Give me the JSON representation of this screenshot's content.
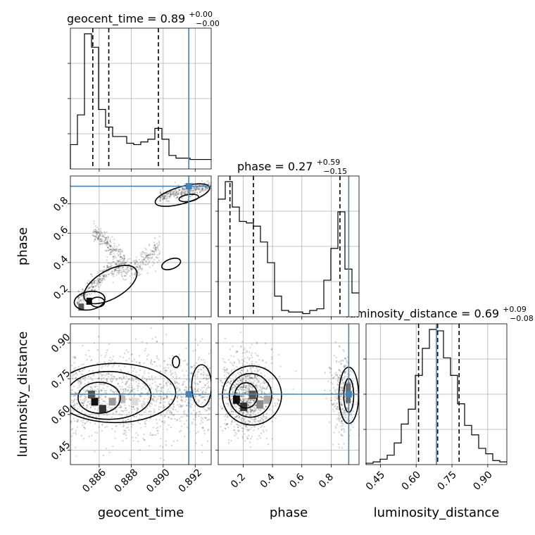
{
  "chart_data": {
    "type": "corner",
    "parameters": [
      "geocent_time",
      "phase",
      "luminosity_distance"
    ],
    "panel_titles": {
      "geocent_time": {
        "name": "geocent_time",
        "median": "0.89",
        "plus": "+0.00",
        "minus": "−0.00"
      },
      "phase": {
        "name": "phase",
        "median": "0.27",
        "plus": "+0.59",
        "minus": "−0.15"
      },
      "luminosity_distance": {
        "name": "luminosity_distance",
        "median": "0.69",
        "plus": "+0.09",
        "minus": "−0.08"
      }
    },
    "ranges": {
      "geocent_time": [
        0.8842,
        0.893
      ],
      "phase": [
        0.03,
        0.99
      ],
      "luminosity_distance": [
        0.39,
        0.98
      ]
    },
    "ticks": {
      "geocent_time": [
        {
          "v": 0.886,
          "label": "0.886"
        },
        {
          "v": 0.888,
          "label": "0.888"
        },
        {
          "v": 0.89,
          "label": "0.890"
        },
        {
          "v": 0.892,
          "label": "0.892"
        }
      ],
      "phase": [
        {
          "v": 0.2,
          "label": "0.2"
        },
        {
          "v": 0.4,
          "label": "0.4"
        },
        {
          "v": 0.6,
          "label": "0.6"
        },
        {
          "v": 0.8,
          "label": "0.8"
        }
      ],
      "luminosity_distance": [
        {
          "v": 0.45,
          "label": "0.45"
        },
        {
          "v": 0.6,
          "label": "0.60"
        },
        {
          "v": 0.75,
          "label": "0.75"
        },
        {
          "v": 0.9,
          "label": "0.90"
        }
      ]
    },
    "injected_values": {
      "geocent_time": 0.8916,
      "phase": 0.92,
      "luminosity_distance": 0.685
    },
    "quantiles": {
      "geocent_time": [
        0.8856,
        0.8866,
        0.8897
      ],
      "phase": [
        0.11,
        0.27,
        0.86
      ],
      "luminosity_distance": [
        0.61,
        0.69,
        0.78
      ]
    },
    "histograms": {
      "geocent_time": {
        "edges": [
          0.8842,
          0.88464,
          0.88508,
          0.88552,
          0.88596,
          0.8864,
          0.88684,
          0.88728,
          0.88772,
          0.88816,
          0.8886,
          0.88904,
          0.88948,
          0.88992,
          0.89036,
          0.8908,
          0.89124,
          0.89168,
          0.89212,
          0.89256,
          0.893
        ],
        "counts": [
          0.18,
          0.4,
          1.0,
          0.9,
          0.44,
          0.31,
          0.24,
          0.24,
          0.19,
          0.18,
          0.2,
          0.22,
          0.3,
          0.22,
          0.1,
          0.08,
          0.08,
          0.07,
          0.07,
          0.07
        ]
      },
      "phase": {
        "edges": [
          0.03,
          0.078,
          0.126,
          0.174,
          0.222,
          0.27,
          0.318,
          0.366,
          0.414,
          0.462,
          0.51,
          0.558,
          0.606,
          0.654,
          0.702,
          0.75,
          0.798,
          0.846,
          0.894,
          0.942,
          0.99
        ],
        "counts": [
          0.74,
          0.85,
          0.69,
          0.6,
          0.59,
          0.57,
          0.47,
          0.34,
          0.13,
          0.04,
          0.03,
          0.03,
          0.02,
          0.04,
          0.05,
          0.23,
          0.43,
          0.66,
          0.3,
          0.15
        ]
      },
      "luminosity_distance": {
        "edges": [
          0.39,
          0.4195,
          0.449,
          0.4785,
          0.508,
          0.5375,
          0.567,
          0.5965,
          0.626,
          0.6555,
          0.685,
          0.7145,
          0.744,
          0.7735,
          0.803,
          0.8325,
          0.862,
          0.8915,
          0.921,
          0.9505,
          0.98
        ],
        "counts": [
          0.01,
          0.02,
          0.04,
          0.07,
          0.16,
          0.3,
          0.41,
          0.66,
          0.86,
          1.0,
          0.99,
          0.79,
          0.66,
          0.45,
          0.29,
          0.22,
          0.12,
          0.08,
          0.03,
          0.02
        ]
      }
    },
    "contour_levels": [
      "0.5-sigma",
      "1-sigma",
      "1.5-sigma",
      "2-sigma"
    ],
    "grid": true
  }
}
